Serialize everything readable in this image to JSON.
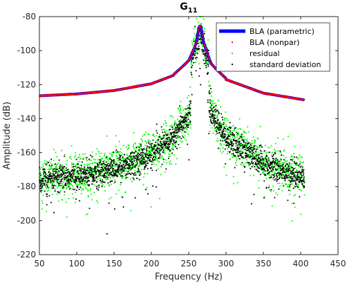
{
  "chart_data": {
    "type": "scatter",
    "title": "G",
    "title_subscript": "11",
    "xlabel": "Frequency (Hz)",
    "ylabel": "Amplitude (dB)",
    "xlim": [
      50,
      450
    ],
    "ylim": [
      -220,
      -80
    ],
    "xticks": [
      50,
      100,
      150,
      200,
      250,
      300,
      350,
      400,
      450
    ],
    "yticks": [
      -220,
      -200,
      -180,
      -160,
      -140,
      -120,
      -100,
      -80
    ],
    "grid": false,
    "legend_position": "top-right",
    "frequency_range": [
      50,
      405
    ],
    "series": [
      {
        "name": "BLA (parametric)",
        "style": "line",
        "color": "#0000ff",
        "samples": [
          {
            "x": 50,
            "y": -126.6
          },
          {
            "x": 100,
            "y": -125.5
          },
          {
            "x": 150,
            "y": -123.5
          },
          {
            "x": 200,
            "y": -119.5
          },
          {
            "x": 230,
            "y": -114.5
          },
          {
            "x": 250,
            "y": -107
          },
          {
            "x": 260,
            "y": -98
          },
          {
            "x": 265,
            "y": -85.5
          },
          {
            "x": 270,
            "y": -98
          },
          {
            "x": 280,
            "y": -109
          },
          {
            "x": 300,
            "y": -117
          },
          {
            "x": 350,
            "y": -125
          },
          {
            "x": 405,
            "y": -129
          }
        ]
      },
      {
        "name": "BLA (nonpar)",
        "style": "markers",
        "color": "#ff0000",
        "note": "overlays parametric curve"
      },
      {
        "name": "residual",
        "style": "markers",
        "color": "#00ff00",
        "samples": [
          {
            "x": 50,
            "y": -174
          },
          {
            "x": 100,
            "y": -174
          },
          {
            "x": 150,
            "y": -169
          },
          {
            "x": 200,
            "y": -160
          },
          {
            "x": 230,
            "y": -150
          },
          {
            "x": 250,
            "y": -137
          },
          {
            "x": 260,
            "y": -118
          },
          {
            "x": 265,
            "y": -98
          },
          {
            "x": 270,
            "y": -118
          },
          {
            "x": 280,
            "y": -135
          },
          {
            "x": 300,
            "y": -150
          },
          {
            "x": 350,
            "y": -166
          },
          {
            "x": 405,
            "y": -174
          }
        ],
        "spread_db": 6
      },
      {
        "name": "standard deviation",
        "style": "markers",
        "color": "#000000",
        "samples": [
          {
            "x": 50,
            "y": -176
          },
          {
            "x": 100,
            "y": -174
          },
          {
            "x": 150,
            "y": -170
          },
          {
            "x": 200,
            "y": -161
          },
          {
            "x": 230,
            "y": -151
          },
          {
            "x": 250,
            "y": -138
          },
          {
            "x": 260,
            "y": -120
          },
          {
            "x": 265,
            "y": -101
          },
          {
            "x": 270,
            "y": -120
          },
          {
            "x": 280,
            "y": -136
          },
          {
            "x": 300,
            "y": -151
          },
          {
            "x": 350,
            "y": -167
          },
          {
            "x": 405,
            "y": -175
          }
        ],
        "spread_db": 4
      }
    ]
  }
}
